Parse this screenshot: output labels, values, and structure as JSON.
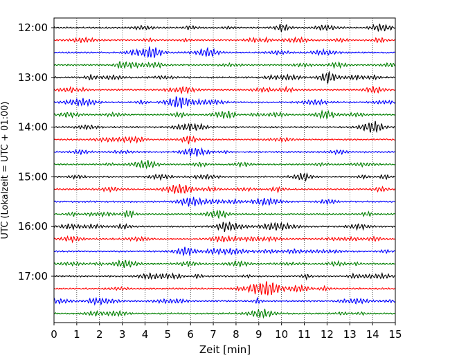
{
  "chart_data": {
    "type": "line",
    "title": "",
    "xlabel": "Zeit  [min]",
    "ylabel": "UTC (Lokalzeit = UTC + 01:00)",
    "xlim": [
      0,
      15
    ],
    "x_ticks": [
      "0",
      "1",
      "2",
      "3",
      "4",
      "5",
      "6",
      "7",
      "8",
      "9",
      "10",
      "11",
      "12",
      "13",
      "14",
      "15"
    ],
    "y_tick_labels": [
      "12:00",
      "13:00",
      "14:00",
      "15:00",
      "16:00",
      "17:00"
    ],
    "grid": "vertical dotted lines at each minute",
    "traces": [
      {
        "start": "12:00",
        "color": "#000000"
      },
      {
        "start": "12:15",
        "color": "#ff0000"
      },
      {
        "start": "12:30",
        "color": "#0000ff"
      },
      {
        "start": "12:45",
        "color": "#008000"
      },
      {
        "start": "13:00",
        "color": "#000000"
      },
      {
        "start": "13:15",
        "color": "#ff0000"
      },
      {
        "start": "13:30",
        "color": "#0000ff"
      },
      {
        "start": "13:45",
        "color": "#008000"
      },
      {
        "start": "14:00",
        "color": "#000000"
      },
      {
        "start": "14:15",
        "color": "#ff0000"
      },
      {
        "start": "14:30",
        "color": "#0000ff"
      },
      {
        "start": "14:45",
        "color": "#008000"
      },
      {
        "start": "15:00",
        "color": "#000000"
      },
      {
        "start": "15:15",
        "color": "#ff0000"
      },
      {
        "start": "15:30",
        "color": "#0000ff"
      },
      {
        "start": "15:45",
        "color": "#008000"
      },
      {
        "start": "16:00",
        "color": "#000000"
      },
      {
        "start": "16:15",
        "color": "#ff0000"
      },
      {
        "start": "16:30",
        "color": "#0000ff"
      },
      {
        "start": "16:45",
        "color": "#008000"
      },
      {
        "start": "17:00",
        "color": "#000000"
      },
      {
        "start": "17:15",
        "color": "#ff0000"
      },
      {
        "start": "17:30",
        "color": "#0000ff"
      },
      {
        "start": "17:45",
        "color": "#008000"
      }
    ]
  }
}
